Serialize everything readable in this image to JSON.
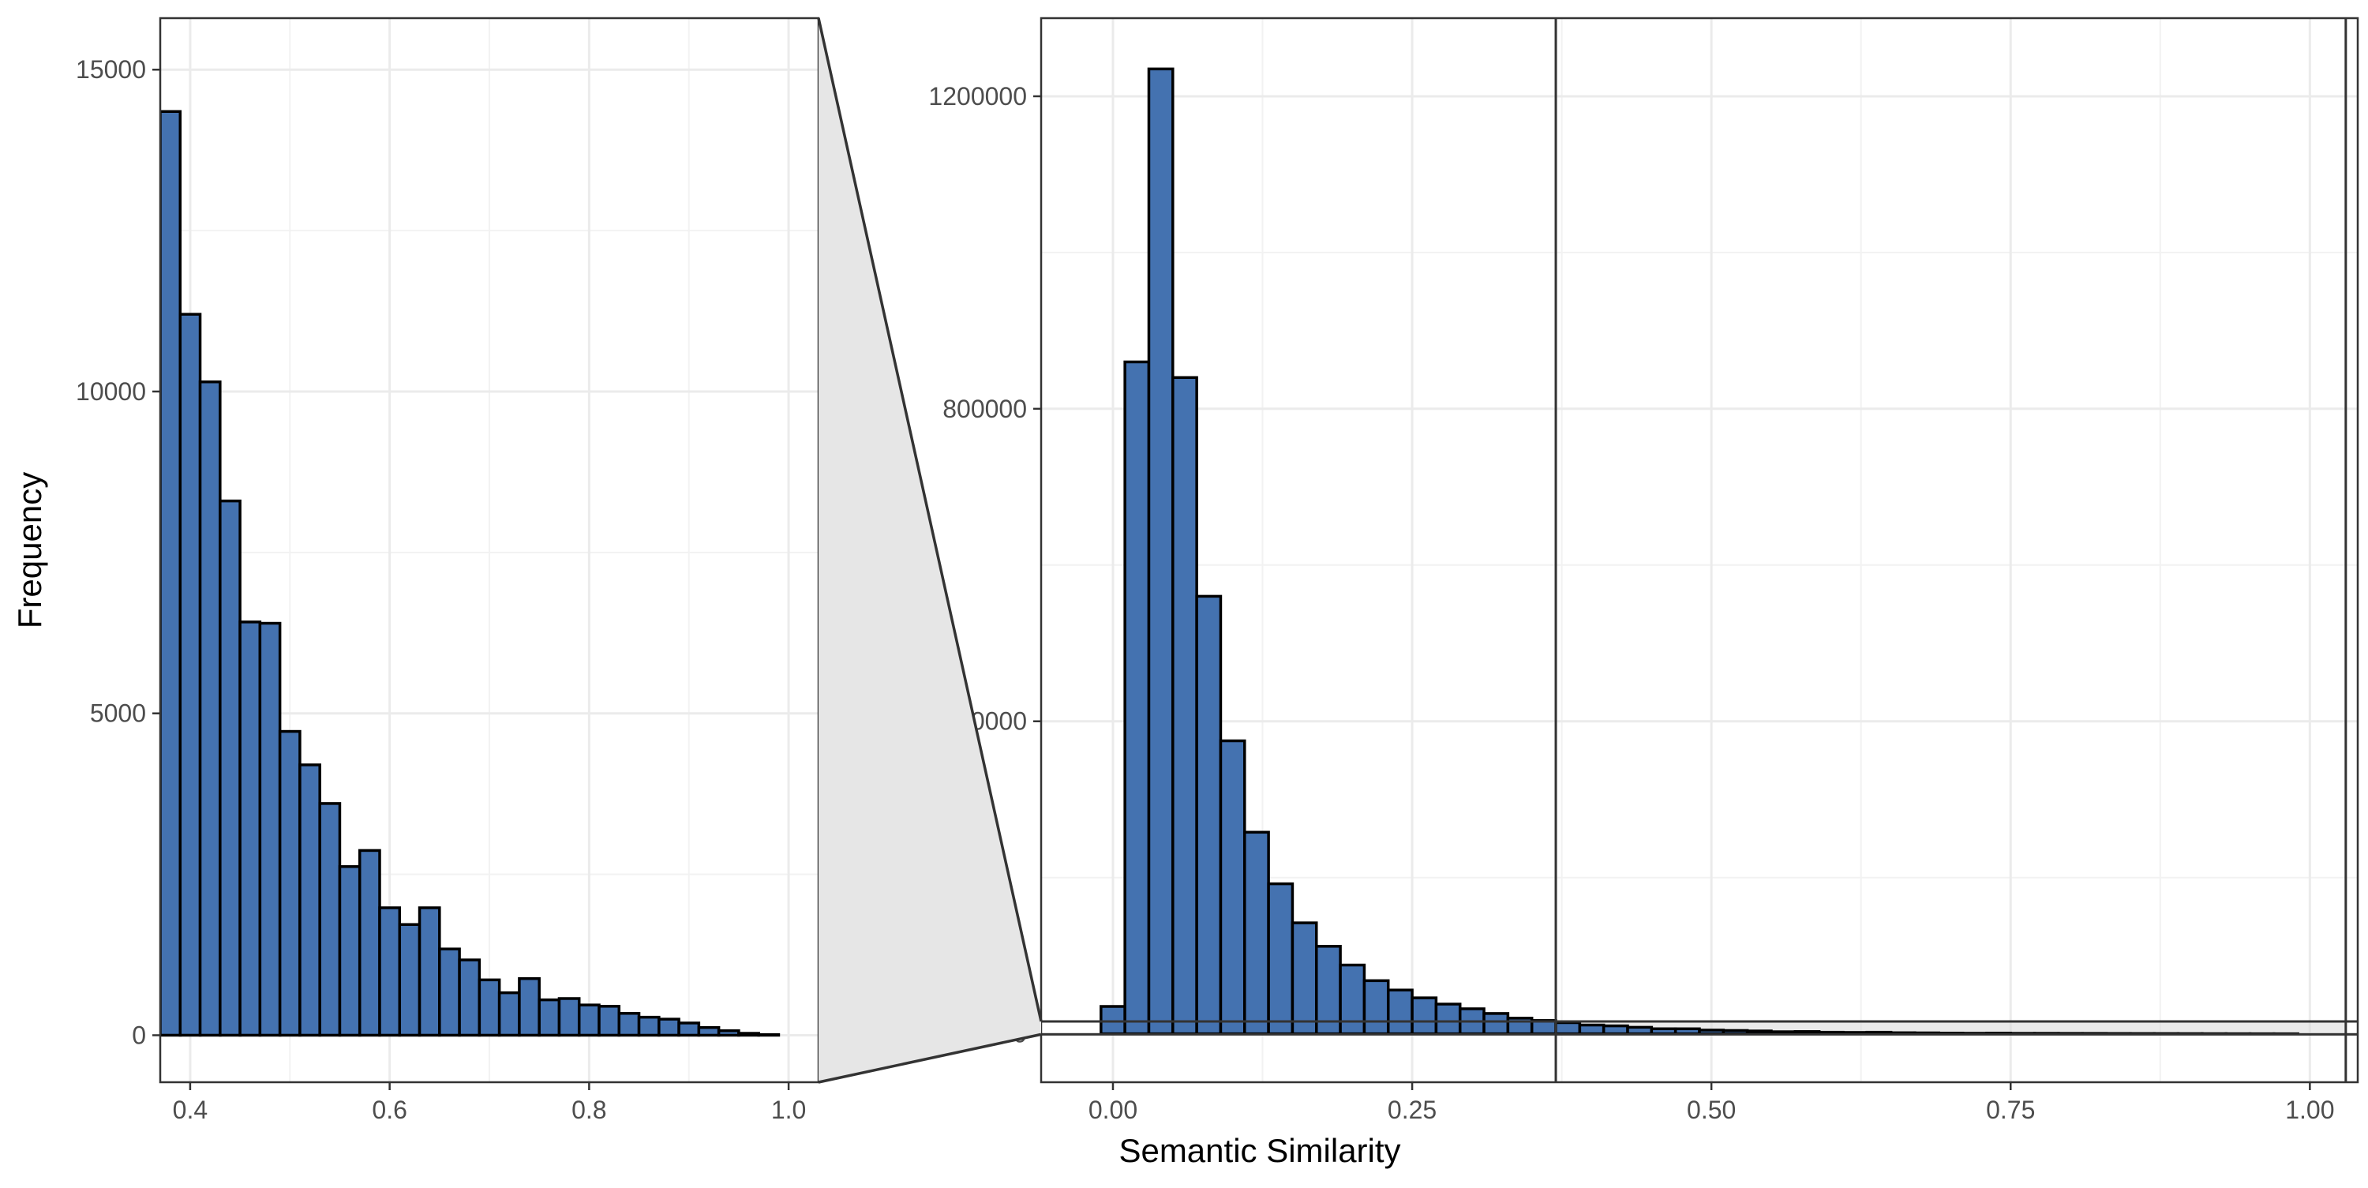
{
  "chart_data": [
    {
      "type": "bar",
      "panel": "zoomed-histogram",
      "title": "",
      "xlabel": "",
      "ylabel": "Frequency",
      "xlim": [
        0.37,
        1.03
      ],
      "ylim": [
        -730,
        15800
      ],
      "x_ticks": [
        0.4,
        0.6,
        0.8,
        1.0
      ],
      "x_tick_labels": [
        "0.4",
        "0.6",
        "0.8",
        "1.0"
      ],
      "y_ticks": [
        0,
        5000,
        10000,
        15000
      ],
      "y_tick_labels": [
        "0",
        "5000",
        "10000",
        "15000"
      ],
      "grid": true,
      "bin_width": 0.02,
      "bin_starts": [
        0.37,
        0.39,
        0.41,
        0.43,
        0.45,
        0.47,
        0.49,
        0.51,
        0.53,
        0.55,
        0.57,
        0.59,
        0.61,
        0.63,
        0.65,
        0.67,
        0.69,
        0.71,
        0.73,
        0.75,
        0.77,
        0.79,
        0.81,
        0.83,
        0.85,
        0.87,
        0.89,
        0.91,
        0.93,
        0.95,
        0.97
      ],
      "values": [
        14350,
        11200,
        10150,
        8300,
        6420,
        6400,
        4720,
        4200,
        3600,
        2620,
        2870,
        1980,
        1720,
        1980,
        1340,
        1170,
        860,
        660,
        880,
        550,
        570,
        470,
        450,
        340,
        280,
        250,
        190,
        120,
        70,
        30,
        10
      ]
    },
    {
      "type": "bar",
      "panel": "full-histogram",
      "title": "",
      "xlabel": "Semantic Similarity",
      "ylabel": "",
      "xlim": [
        -0.06,
        1.04
      ],
      "ylim": [
        -62000,
        1300000
      ],
      "x_ticks": [
        0.0,
        0.25,
        0.5,
        0.75,
        1.0
      ],
      "x_tick_labels": [
        "0.00",
        "0.25",
        "0.50",
        "0.75",
        "1.00"
      ],
      "y_ticks": [
        0,
        400000,
        800000,
        1200000
      ],
      "y_tick_labels": [
        "0",
        "400000",
        "800000",
        "1200000"
      ],
      "grid": true,
      "bin_width": 0.02,
      "bin_starts": [
        -0.01,
        0.01,
        0.03,
        0.05,
        0.07,
        0.09,
        0.11,
        0.13,
        0.15,
        0.17,
        0.19,
        0.21,
        0.23,
        0.25,
        0.27,
        0.29,
        0.31,
        0.33,
        0.35,
        0.37,
        0.39,
        0.41,
        0.43,
        0.45,
        0.47,
        0.49,
        0.51,
        0.53,
        0.55,
        0.57,
        0.59,
        0.61,
        0.63,
        0.65,
        0.67,
        0.69,
        0.71,
        0.73,
        0.75,
        0.77,
        0.79,
        0.81,
        0.83,
        0.85,
        0.87,
        0.89,
        0.91,
        0.93,
        0.95,
        0.97
      ],
      "values": [
        35000,
        860000,
        1235000,
        840000,
        560000,
        375000,
        258000,
        192000,
        142000,
        112000,
        88000,
        68000,
        56000,
        46000,
        38000,
        32000,
        26000,
        20000,
        17000,
        14300,
        11200,
        10150,
        8300,
        6420,
        6400,
        4720,
        4200,
        3600,
        2620,
        2870,
        1980,
        1720,
        1980,
        1340,
        1170,
        860,
        660,
        880,
        550,
        570,
        470,
        450,
        340,
        280,
        250,
        190,
        120,
        70,
        30,
        10
      ],
      "zoom_region": {
        "x": [
          0.37,
          1.03
        ],
        "y": [
          -730,
          15800
        ]
      }
    }
  ]
}
